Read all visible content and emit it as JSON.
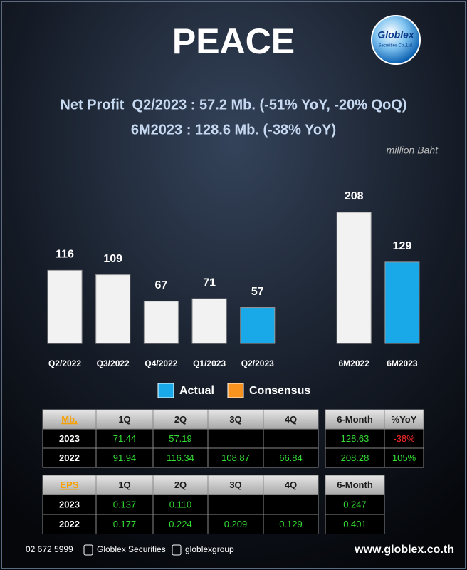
{
  "header": {
    "title": "PEACE",
    "logo": [
      "Globlex",
      "Securities Co.,Ltd."
    ],
    "lines": [
      "Net Profit  Q2/2023 : 57.2 Mb. (-51% YoY, -20% QoQ)",
      "6M2023 : 128.6 Mb. (-38% YoY)"
    ]
  },
  "chart_data": {
    "type": "bar",
    "unit": "million Baht",
    "categories": [
      "Q2/2022",
      "Q3/2022",
      "Q4/2022",
      "Q1/2023",
      "Q2/2023",
      null,
      "6M2022",
      "6M2023"
    ],
    "values": [
      116,
      109,
      67,
      71,
      57,
      null,
      208,
      129
    ],
    "colors": [
      "#f2f2f2",
      "#f2f2f2",
      "#f2f2f2",
      "#f2f2f2",
      "#1aa9e8",
      null,
      "#f2f2f2",
      "#1aa9e8"
    ],
    "legend": [
      {
        "name": "Actual",
        "color": "#1aa9e8"
      },
      {
        "name": "Consensus",
        "color": "#f7931e"
      }
    ]
  },
  "profit_table": {
    "header": [
      "Mb.",
      "1Q",
      "2Q",
      "3Q",
      "4Q"
    ],
    "rows": [
      [
        "2023",
        "71.44",
        "57.19",
        null,
        null
      ],
      [
        "2022",
        "91.94",
        "116.34",
        "108.87",
        "66.84"
      ]
    ]
  },
  "profit_6m_table": {
    "header": [
      "6-Month",
      "%YoY"
    ],
    "rows": [
      [
        "128.63",
        "-38%"
      ],
      [
        "208.28",
        "105%"
      ]
    ]
  },
  "eps_table": {
    "header": [
      "EPS",
      "1Q",
      "2Q",
      "3Q",
      "4Q"
    ],
    "rows": [
      [
        "2023",
        "0.137",
        "0.110",
        null,
        null
      ],
      [
        "2022",
        "0.177",
        "0.224",
        "0.209",
        "0.129"
      ]
    ]
  },
  "eps_6m_table": {
    "header": [
      "6-Month"
    ],
    "rows": [
      [
        "0.247"
      ],
      [
        "0.401"
      ]
    ]
  },
  "footer": {
    "phone": "02 672 5999",
    "facebook": "Globlex Securities",
    "telegram": "globlexgroup",
    "website": "www.globlex.co.th"
  }
}
